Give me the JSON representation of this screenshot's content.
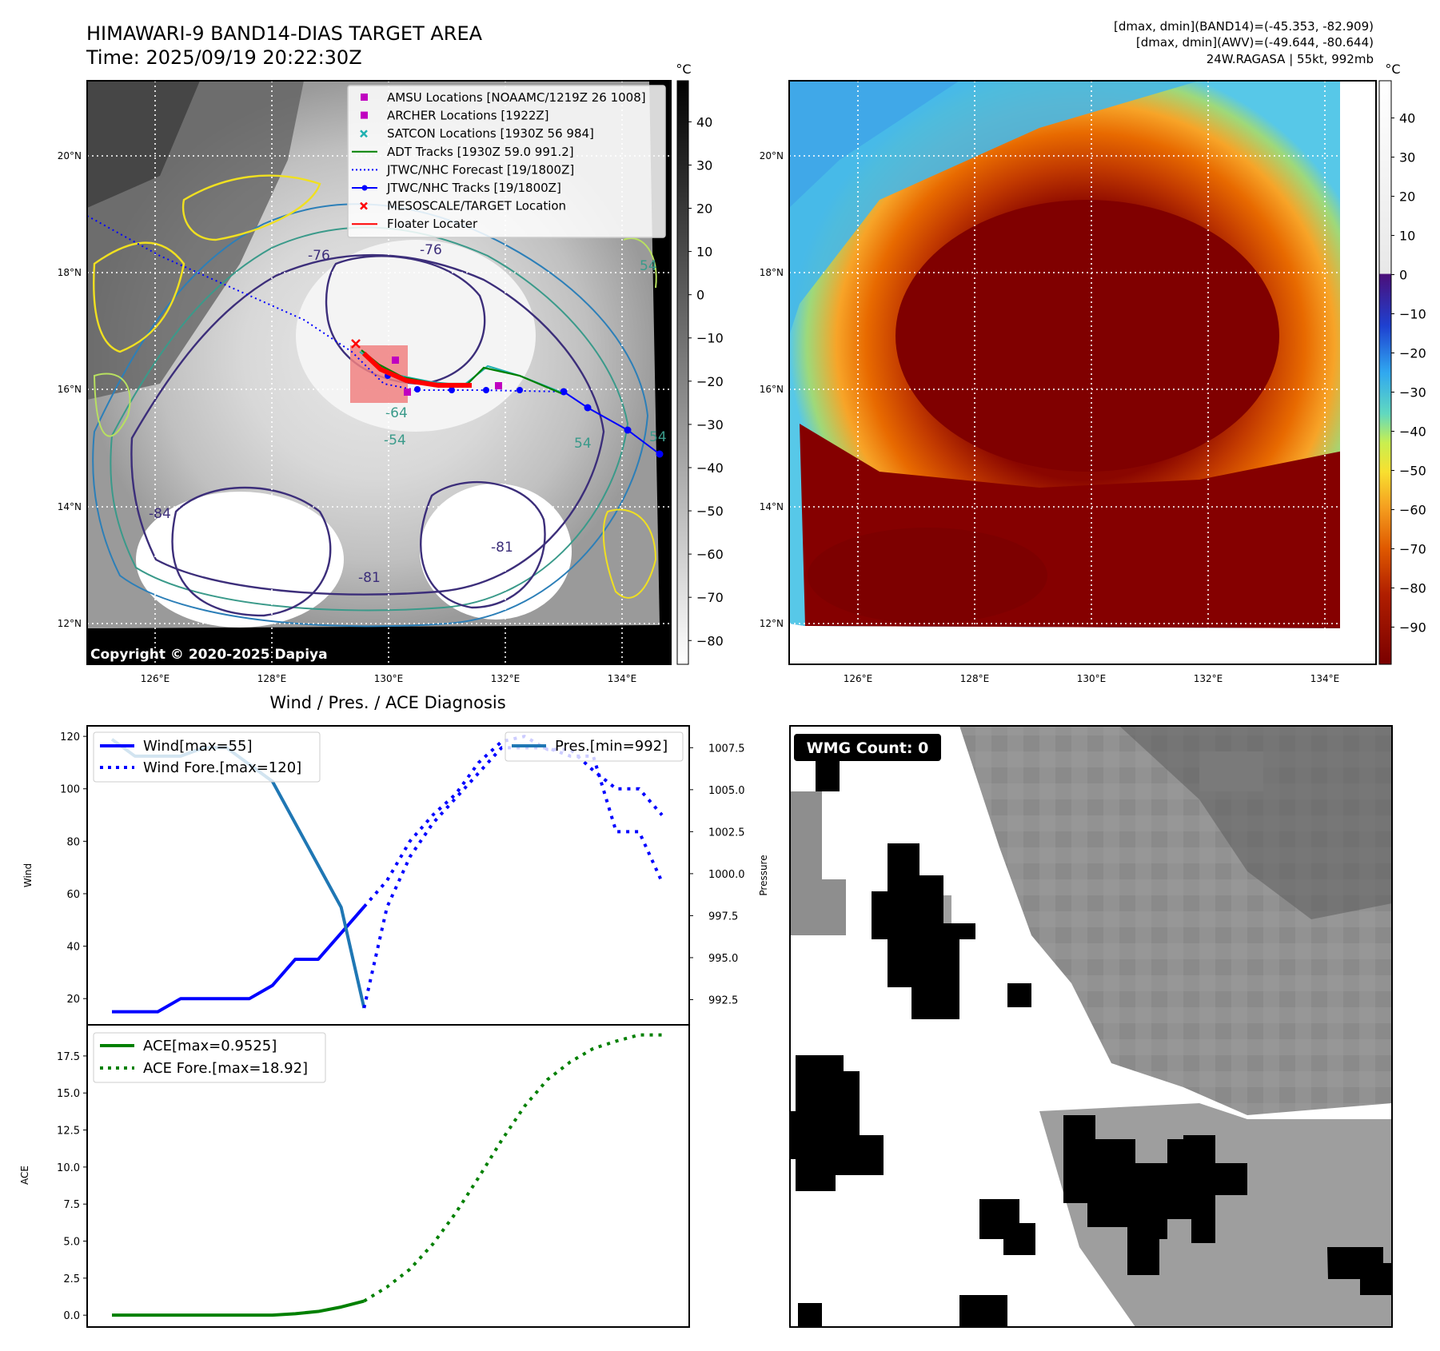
{
  "header": {
    "title": "HIMAWARI-9 BAND14-DIAS TARGET AREA",
    "time": "Time: 2025/09/19 20:22:30Z",
    "info_line1": "[dmax, dmin](BAND14)=(-45.353, -82.909)",
    "info_line2": "[dmax, dmin](AWV)=(-49.644, -80.644)",
    "info_line3": "24W.RAGASA | 55kt, 992mb"
  },
  "map": {
    "lon_ticks": [
      "126°E",
      "128°E",
      "130°E",
      "132°E",
      "134°E"
    ],
    "lat_ticks": [
      "20°N",
      "18°N",
      "16°N",
      "14°N",
      "12°N"
    ],
    "copyright": "Copyright © 2020-2025 Dapiya",
    "contour_labels": [
      "-76",
      "-76",
      "-64",
      "-54",
      "-84",
      "-81",
      "-81",
      "54",
      "54",
      "54"
    ],
    "legend": [
      {
        "label": "AMSU Locations [NOAAMC/1219Z 26 1008]",
        "marker": "square",
        "color": "#c000c0"
      },
      {
        "label": "ARCHER Locations [1922Z]",
        "marker": "square",
        "color": "#c000c0"
      },
      {
        "label": "SATCON Locations [1930Z 56 984]",
        "marker": "x",
        "color": "#20b0b0"
      },
      {
        "label": "ADT Tracks [1930Z 59.0 991.2]",
        "marker": "line",
        "color": "#008000"
      },
      {
        "label": "JTWC/NHC Forecast [19/1800Z]",
        "marker": "dotted",
        "color": "#0000ff"
      },
      {
        "label": "JTWC/NHC Tracks [19/1800Z]",
        "marker": "line-dot",
        "color": "#0000ff"
      },
      {
        "label": "MESOSCALE/TARGET Location",
        "marker": "x",
        "color": "#ff0000"
      },
      {
        "label": "Floater Locater",
        "marker": "line",
        "color": "#ff0000"
      }
    ]
  },
  "colorbar_gray": {
    "unit": "°C",
    "ticks": [
      "40",
      "30",
      "20",
      "10",
      "0",
      "−10",
      "−20",
      "−30",
      "−40",
      "−50",
      "−60",
      "−70",
      "−80"
    ]
  },
  "colorbar_color": {
    "unit": "°C",
    "ticks": [
      "40",
      "30",
      "20",
      "10",
      "0",
      "−10",
      "−20",
      "−30",
      "−40",
      "−50",
      "−60",
      "−70",
      "−80",
      "−90"
    ]
  },
  "wmg": {
    "label": "WMG Count: 0"
  },
  "chart_data": [
    {
      "type": "line",
      "title": "Wind / Pres. / ACE Diagnosis",
      "ylabel": "Wind",
      "ylabel_right": "Pressure",
      "ylim": [
        10,
        124
      ],
      "ylim_right": [
        991,
        1008.8
      ],
      "yticks": [
        20,
        40,
        60,
        80,
        100,
        120
      ],
      "yticks_right": [
        992.5,
        995.0,
        997.5,
        1000.0,
        1002.5,
        1005.0,
        1007.5
      ],
      "legend": [
        "Wind[max=55]",
        "Wind Fore.[max=120]",
        "Pres.[min=992]"
      ],
      "series": [
        {
          "name": "Wind[max=55]",
          "color": "#0000ff",
          "style": "solid",
          "x": [
            0,
            1,
            2,
            3,
            4,
            5,
            6,
            7,
            8,
            9,
            10,
            11
          ],
          "values": [
            15,
            15,
            15,
            20,
            20,
            20,
            20,
            25,
            35,
            35,
            45,
            55
          ]
        },
        {
          "name": "Wind Fore.[max=120]",
          "color": "#0000ff",
          "style": "dotted",
          "x": [
            11,
            12,
            13,
            14,
            15,
            16,
            17,
            18,
            19,
            20,
            21,
            22,
            23,
            24
          ],
          "values": [
            55,
            65,
            80,
            90,
            98,
            110,
            118,
            120,
            115,
            115,
            107,
            100,
            100,
            90
          ]
        },
        {
          "name": "Pres.[min=992]",
          "color": "#1f77b4",
          "style": "solid",
          "x": [
            0,
            1,
            2,
            3,
            4,
            5,
            6,
            7,
            8,
            9,
            10,
            11
          ],
          "values": [
            1008,
            1007,
            1007,
            1007,
            1007.5,
            1007.5,
            1006.5,
            1005.5,
            1003,
            1000.5,
            998,
            992
          ]
        },
        {
          "name": "",
          "color": "#0000ff",
          "style": "dotted",
          "axis": "right",
          "x": [
            11,
            12,
            13,
            14,
            15,
            16,
            17,
            18,
            19,
            20,
            21,
            22,
            23,
            24
          ],
          "values": [
            992,
            998,
            1001,
            1003,
            1004.5,
            1006,
            1007.5,
            1007.5,
            1007.5,
            1007,
            1007,
            1002.5,
            1002.5,
            999.5
          ]
        }
      ]
    },
    {
      "type": "line",
      "ylabel": "ACE",
      "ylim": [
        -0.8,
        19.6
      ],
      "yticks": [
        0.0,
        2.5,
        5.0,
        7.5,
        10.0,
        12.5,
        15.0,
        17.5
      ],
      "legend": [
        "ACE[max=0.9525]",
        "ACE Fore.[max=18.92]"
      ],
      "series": [
        {
          "name": "ACE[max=0.9525]",
          "color": "#008000",
          "style": "solid",
          "x": [
            0,
            1,
            2,
            3,
            4,
            5,
            6,
            7,
            8,
            9,
            10,
            11
          ],
          "values": [
            0,
            0,
            0,
            0,
            0,
            0,
            0,
            0,
            0.1,
            0.25,
            0.55,
            0.9525
          ]
        },
        {
          "name": "ACE Fore.[max=18.92]",
          "color": "#008000",
          "style": "dotted",
          "x": [
            11,
            12,
            13,
            14,
            15,
            16,
            17,
            18,
            19,
            20,
            21,
            22,
            23,
            24
          ],
          "values": [
            0.9525,
            1.9,
            3.1,
            4.8,
            6.9,
            9.3,
            11.8,
            14.1,
            15.9,
            17.1,
            18.0,
            18.5,
            18.92,
            18.92
          ]
        }
      ]
    }
  ]
}
